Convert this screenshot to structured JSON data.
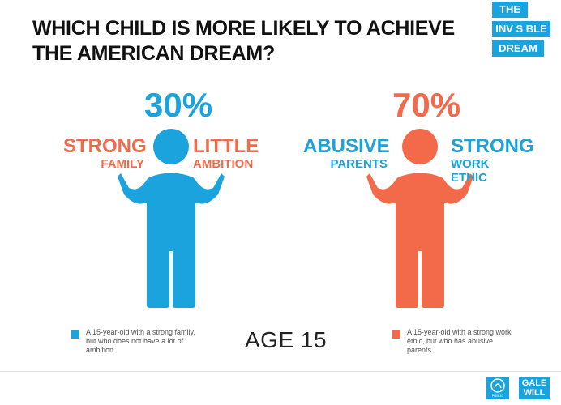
{
  "title": "WHICH CHILD IS MORE LIKELY TO ACHIEVE THE AMERICAN DREAM?",
  "logo": {
    "line1": "THE",
    "line2": "INV S BLE",
    "line3": "DREAM"
  },
  "age_label": "AGE 15",
  "footer_logos": {
    "public_agenda": "PUBLIC AGENDA",
    "gale_will": "GALE WiLL"
  },
  "colors": {
    "blue": "#1aa3dc",
    "orange": "#f26a4a"
  },
  "chart_data": {
    "type": "pictograph",
    "title": "WHICH CHILD IS MORE LIKELY TO ACHIEVE THE AMERICAN DREAM?",
    "categories": [
      "Strong family, little ambition",
      "Abusive parents, strong work ethic"
    ],
    "values": [
      30,
      70
    ],
    "unit": "%",
    "children": [
      {
        "value_label": "30%",
        "color": "#1aa3dc",
        "left_label": {
          "big": "STRONG",
          "small": "FAMILY",
          "color": "#f26a4a"
        },
        "right_label": {
          "big": "LITTLE",
          "small": "AMBITION",
          "color": "#f26a4a"
        },
        "legend": "A 15-year-old with a strong family, but who does not have a lot of ambition."
      },
      {
        "value_label": "70%",
        "color": "#f26a4a",
        "left_label": {
          "big": "ABUSIVE",
          "small": "PARENTS",
          "color": "#1aa3dc"
        },
        "right_label": {
          "big": "STRONG",
          "small": "WORK ETHIC",
          "color": "#1aa3dc"
        },
        "legend": "A 15-year-old with a strong work ethic, but who has abusive parents."
      }
    ]
  }
}
